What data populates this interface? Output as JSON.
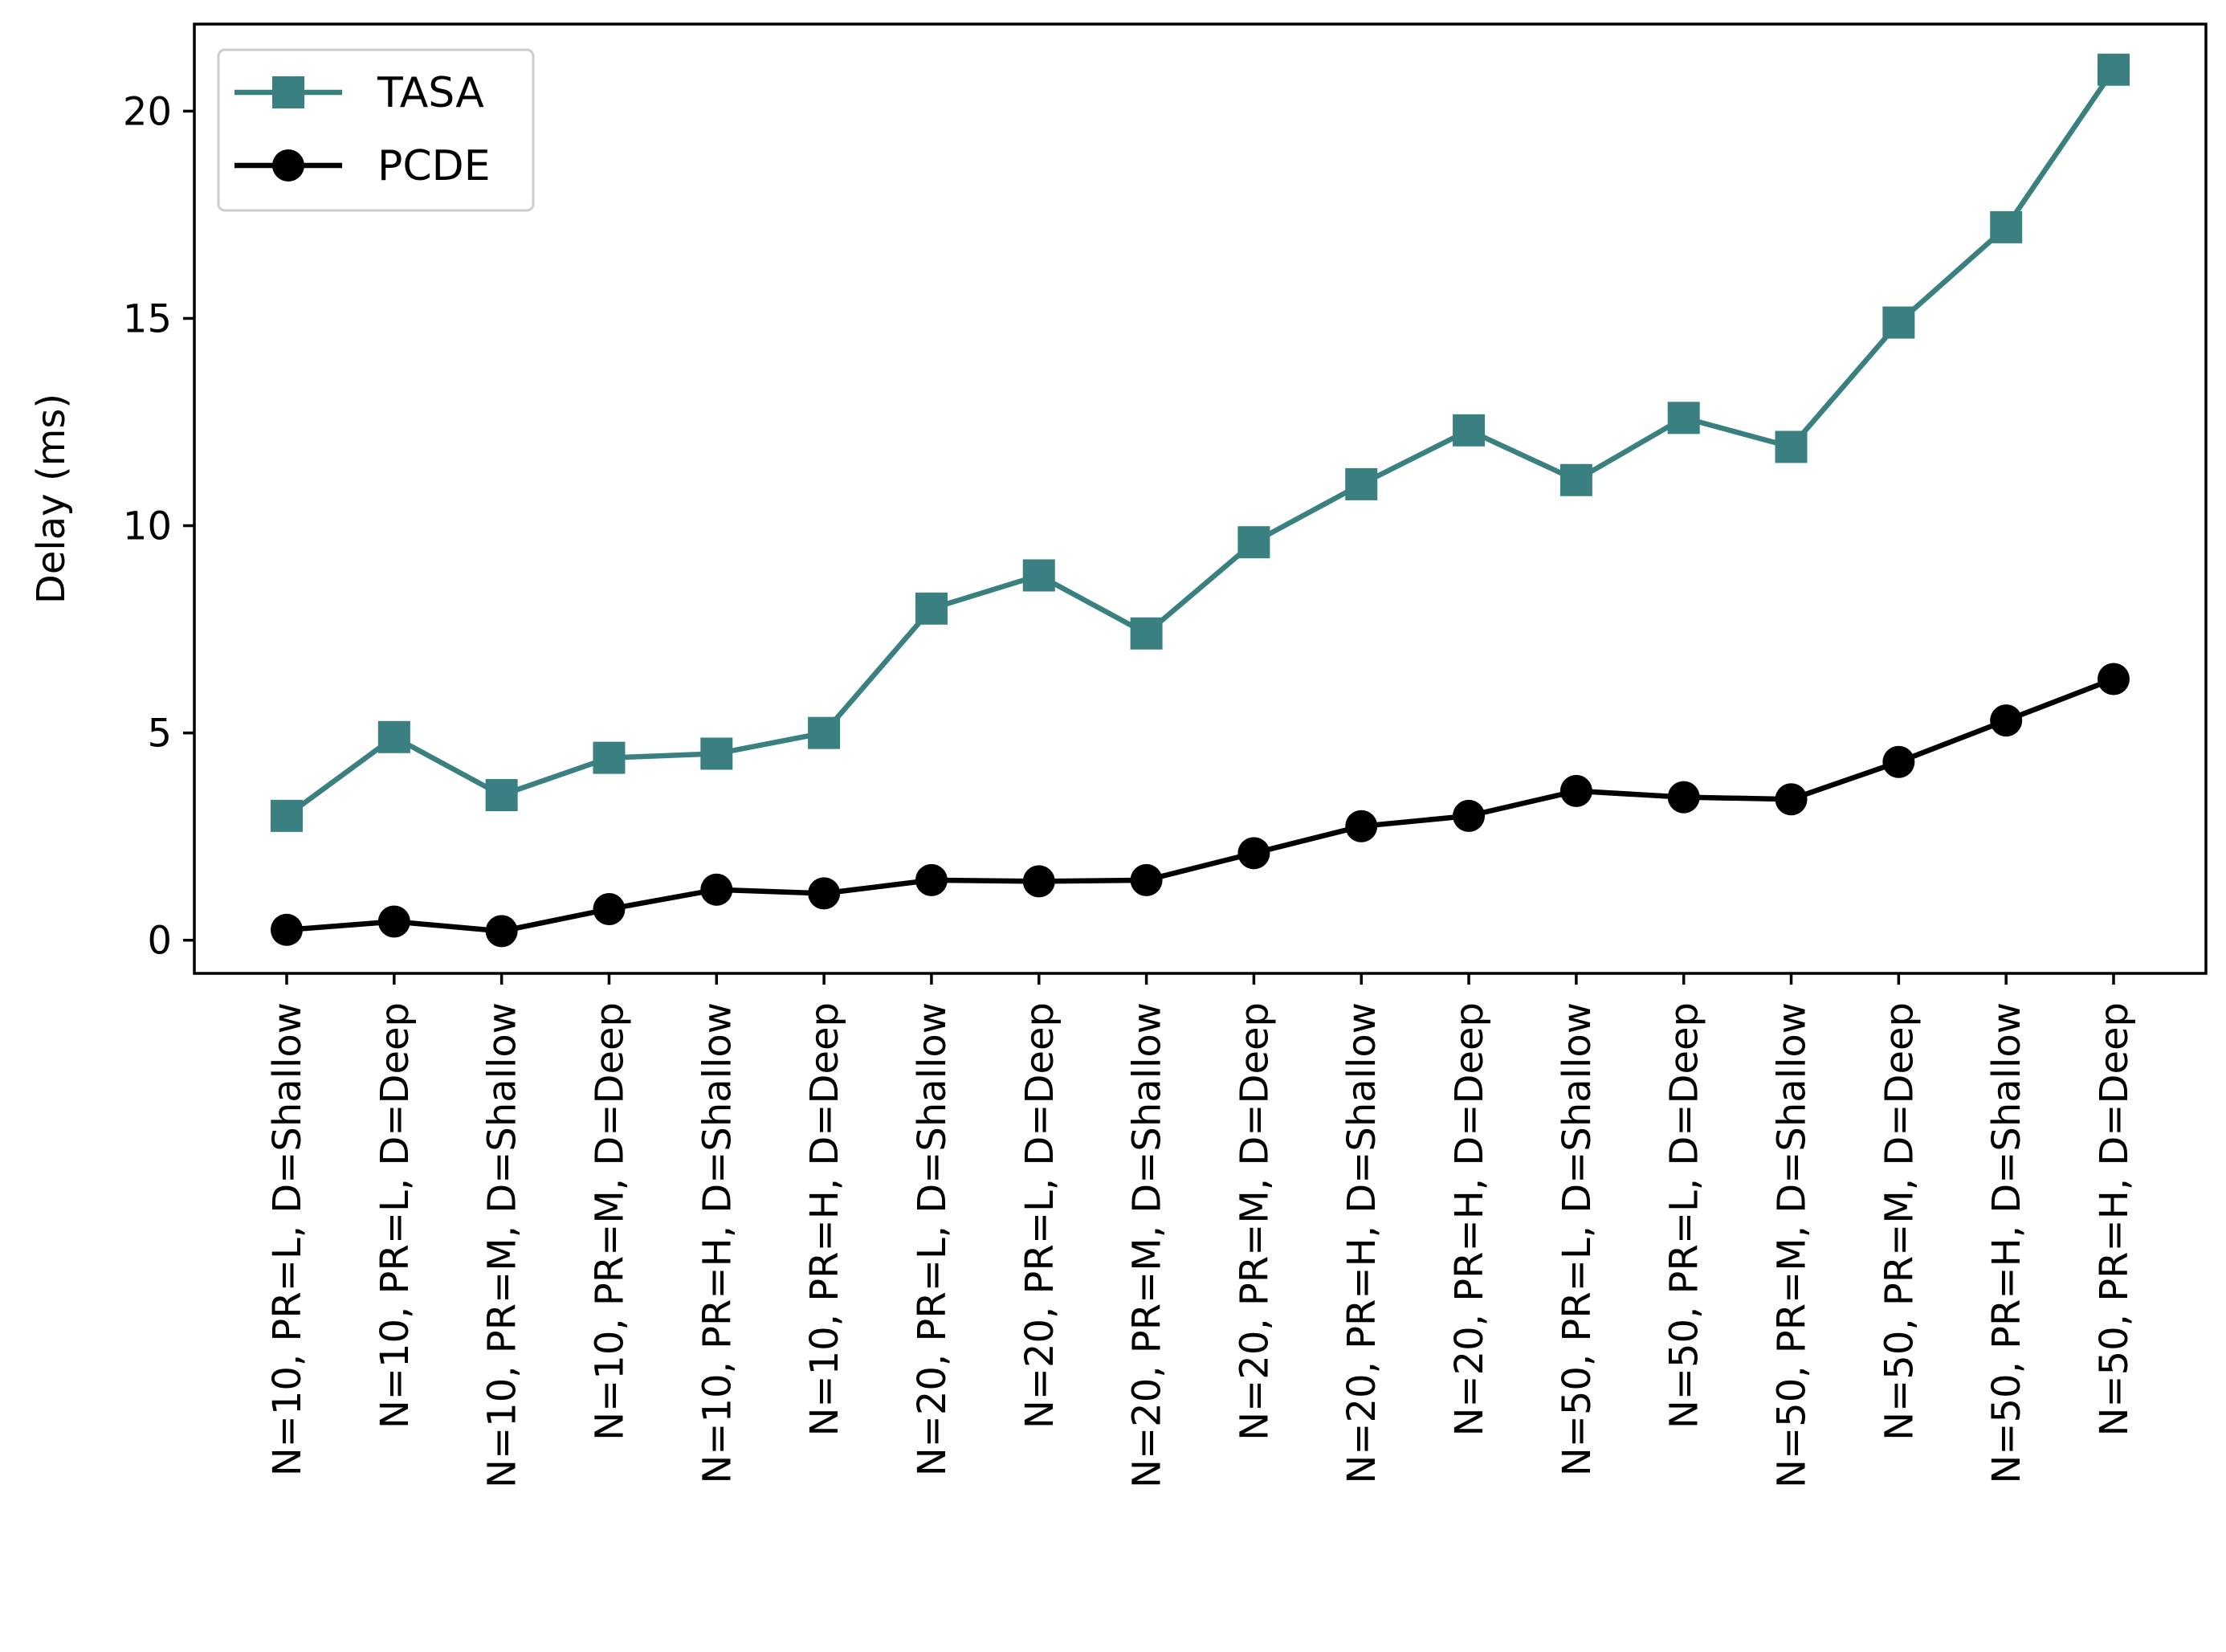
{
  "chart_data": {
    "type": "line",
    "title": "",
    "xlabel": "",
    "ylabel": "Delay (ms)",
    "ylim": [
      -0.8,
      22.1
    ],
    "yticks": [
      0,
      5,
      10,
      15,
      20
    ],
    "categories": [
      "N=10, PR=L, D=Shallow",
      "N=10, PR=L, D=Deep",
      "N=10, PR=M, D=Shallow",
      "N=10, PR=M, D=Deep",
      "N=10, PR=H, D=Shallow",
      "N=10, PR=H, D=Deep",
      "N=20, PR=L, D=Shallow",
      "N=20, PR=L, D=Deep",
      "N=20, PR=M, D=Shallow",
      "N=20, PR=M, D=Deep",
      "N=20, PR=H, D=Shallow",
      "N=20, PR=H, D=Deep",
      "N=50, PR=L, D=Shallow",
      "N=50, PR=L, D=Deep",
      "N=50, PR=M, D=Shallow",
      "N=50, PR=M, D=Deep",
      "N=50, PR=H, D=Shallow",
      "N=50, PR=H, D=Deep"
    ],
    "series": [
      {
        "name": "TASA",
        "color": "#3a8080",
        "marker": "square",
        "values": [
          3.0,
          4.9,
          3.5,
          4.4,
          4.5,
          5.0,
          8.0,
          8.8,
          7.4,
          9.6,
          11.0,
          12.3,
          11.1,
          12.6,
          11.9,
          14.9,
          17.2,
          21.0
        ]
      },
      {
        "name": "PCDE",
        "color": "#000000",
        "marker": "circle",
        "values": [
          0.25,
          0.45,
          0.22,
          0.75,
          1.22,
          1.13,
          1.45,
          1.42,
          1.45,
          2.1,
          2.75,
          3.0,
          3.6,
          3.45,
          3.4,
          4.3,
          5.3,
          6.3
        ]
      }
    ],
    "legend": {
      "position": "top-left",
      "entries": [
        "TASA",
        "PCDE"
      ]
    },
    "grid": false
  }
}
